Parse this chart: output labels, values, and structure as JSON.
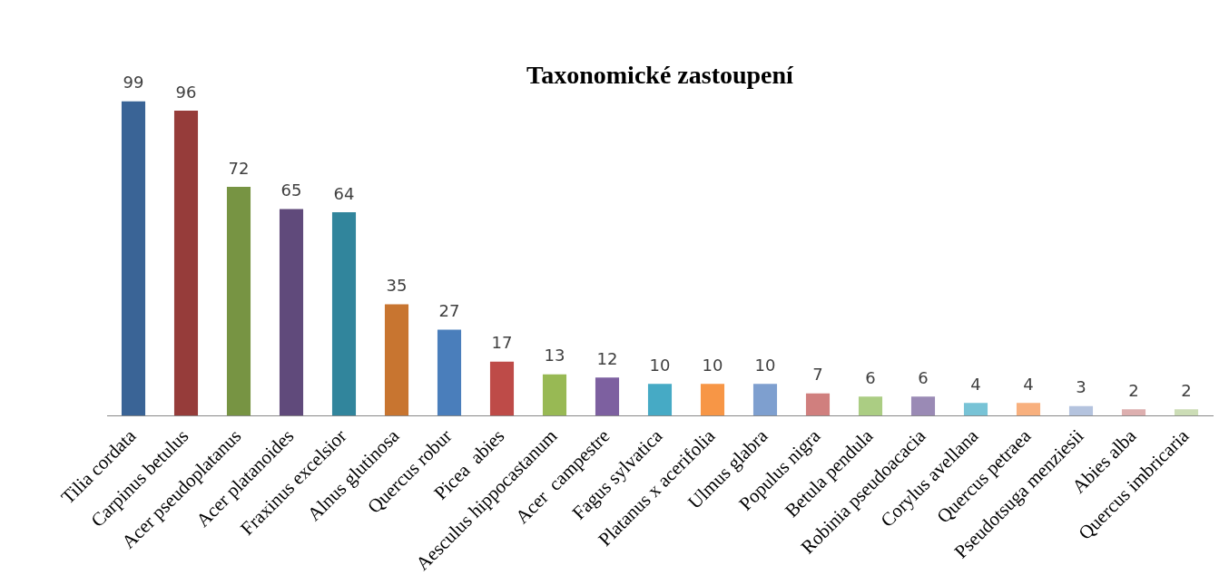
{
  "chart_data": {
    "type": "bar",
    "title": "Taxonomické zastoupení",
    "categories": [
      "Tilia cordata",
      "Carpinus betulus",
      "Acer pseudoplatanus",
      "Acer platanoides",
      "Fraxinus excelsior",
      "Alnus glutinosa",
      "Quercus robur",
      "Picea  abies",
      "Aesculus hippocastanum",
      "Acer  campestre",
      "Fagus sylvatica",
      "Platanus x acerifolia",
      "Ulmus glabra",
      "Populus nigra",
      "Betula pendula",
      "Robinia pseudoacacia",
      "Corylus avellana",
      "Quercus petraea",
      "Pseudotsuga menziesii",
      "Abies alba",
      "Quercus imbricaria"
    ],
    "values": [
      99,
      96,
      72,
      65,
      64,
      35,
      27,
      17,
      13,
      12,
      10,
      10,
      10,
      7,
      6,
      6,
      4,
      4,
      3,
      2,
      2
    ],
    "colors": [
      "#3a6496",
      "#963c3a",
      "#779443",
      "#604a7b",
      "#31859c",
      "#c87530",
      "#4a7ebb",
      "#be4b48",
      "#98b954",
      "#7d60a0",
      "#46aac5",
      "#f79646",
      "#7e9fcf",
      "#d07f7e",
      "#abcd83",
      "#9a8ab5",
      "#78c3d6",
      "#f8b07e",
      "#b4c3de",
      "#ddafaf",
      "#ccddb6"
    ],
    "data_labels": true
  }
}
